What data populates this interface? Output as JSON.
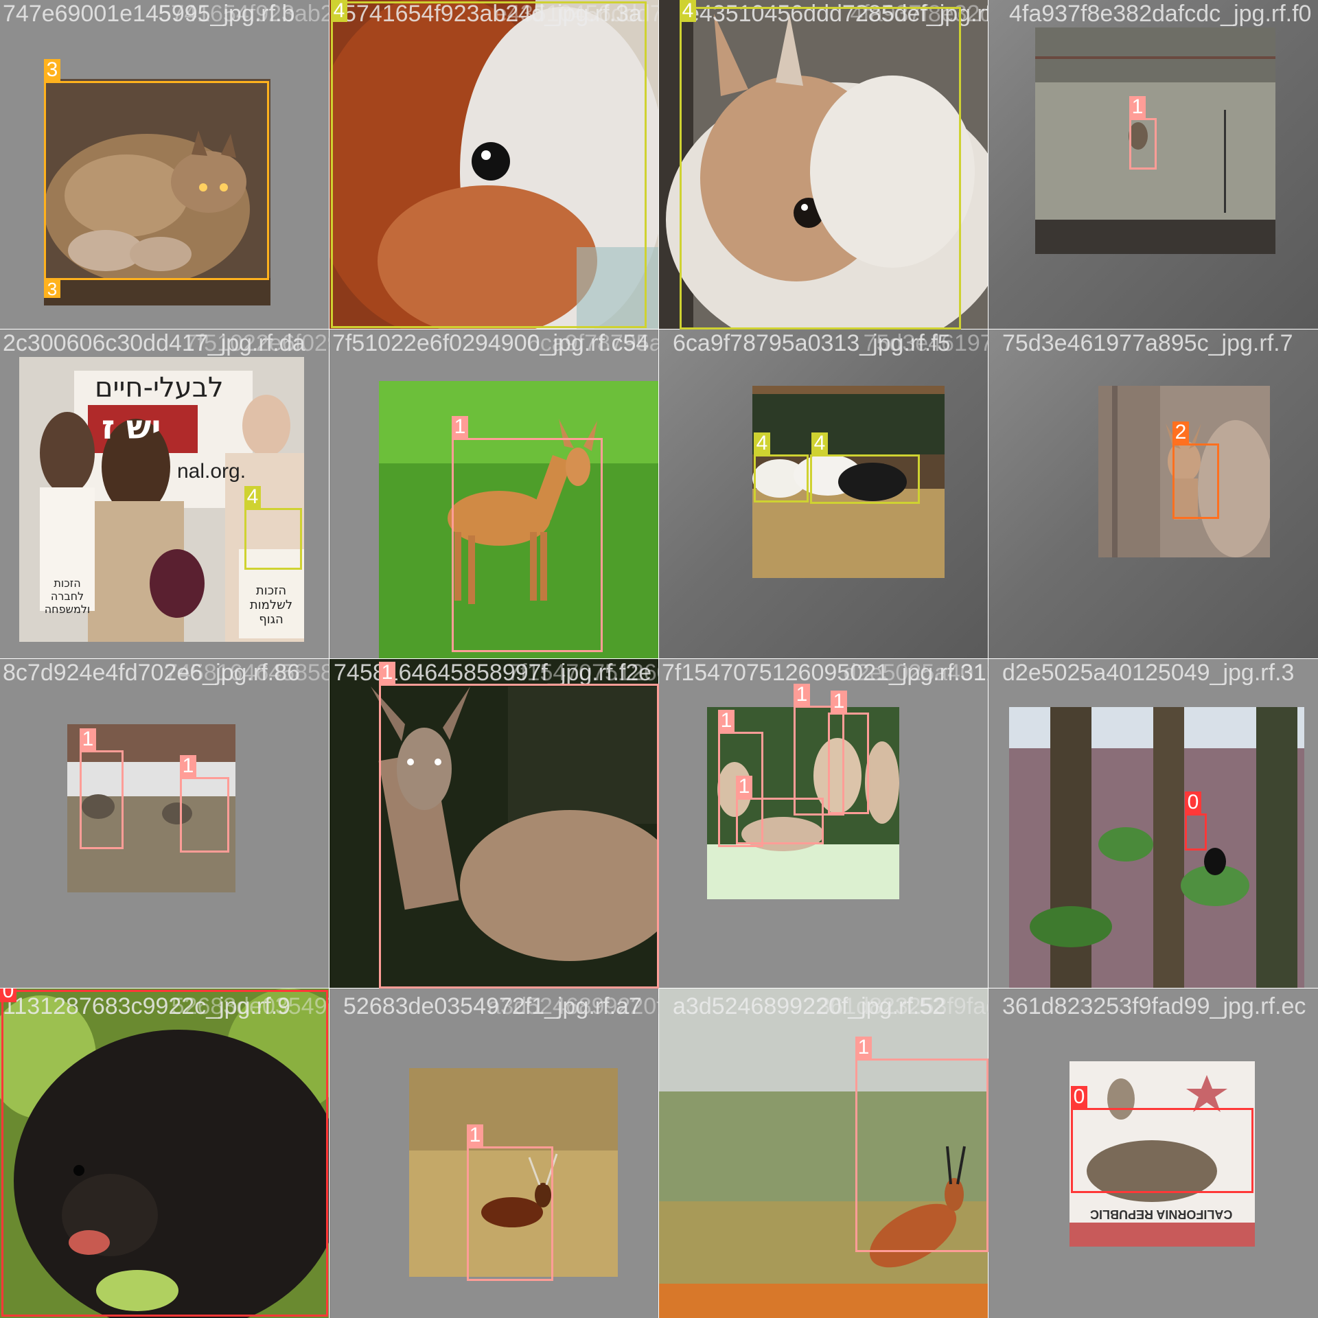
{
  "class_colors": {
    "0": "#ff3838",
    "1": "#ff9d97",
    "2": "#ff701f",
    "3": "#ffb21d",
    "4": "#cfd231"
  },
  "tiles": [
    {
      "filename": "747e69001e145995_jpg.rf.b",
      "overlap": "5741654f923ab24d_jpg.rf.3a",
      "labels": [
        "3"
      ],
      "scene": "lynx-icon"
    },
    {
      "filename": "5741654f923ab24d_jpg.rf.3a",
      "overlap": "e43510456ddd7285",
      "labels": [
        "4"
      ],
      "scene": "guinea-pig-icon"
    },
    {
      "filename": "e43510456ddd7285def_jpg.rf.fc",
      "overlap": "4fa937f8e32d0fcdc",
      "labels": [
        "4"
      ],
      "scene": "rabbit-icon"
    },
    {
      "filename": "4fa937f8e382dafcdc_jpg.rf.f0",
      "overlap": "",
      "labels": [
        "1"
      ],
      "scene": "field-deer-icon"
    },
    {
      "filename": "2c300606c30dd417_jpg.rf.da",
      "overlap": "7f51022e6f0294900_jpg.rf.c5",
      "labels": [
        "4"
      ],
      "scene": "protest-icon"
    },
    {
      "filename": "7f51022e6f0294900_jpg.rf.c54",
      "overlap": "6ca9f78795a0313",
      "labels": [
        "1"
      ],
      "scene": "fawn-icon"
    },
    {
      "filename": "6ca9f78795a0313_jpg.rf.f5",
      "overlap": "75d3e461977a895c",
      "labels": [
        "4",
        "4"
      ],
      "scene": "rabbits-hay-icon"
    },
    {
      "filename": "75d3e461977a895c_jpg.rf.7",
      "overlap": "",
      "labels": [
        "2"
      ],
      "scene": "fox-icon"
    },
    {
      "filename": "8c7d924e4fd702e6_jpg.rf.86",
      "overlap": "7458164645858997f_jpg.rf.f2",
      "labels": [
        "1",
        "1"
      ],
      "scene": "mule-deer-icon"
    },
    {
      "filename": "7458164645858997f_jpg.rf.f2e",
      "overlap": "7f1547075126095021",
      "labels": [
        "1"
      ],
      "scene": "doe-night-icon"
    },
    {
      "filename": "7f1547075126095021_jpg.rf.31",
      "overlap": "d2e5025a40125049",
      "labels": [
        "1",
        "1",
        "1",
        "1"
      ],
      "scene": "deer-herd-icon"
    },
    {
      "filename": "d2e5025a40125049_jpg.rf.3",
      "overlap": "",
      "labels": [
        "0"
      ],
      "scene": "forest-bear-icon"
    },
    {
      "filename": "1131287683c9922c_jpg.rf.9",
      "overlap": "52683de0354972f1",
      "labels": [
        "0"
      ],
      "scene": "bear-closeup-icon"
    },
    {
      "filename": "52683de0354972f1_jpg.rf.a7",
      "overlap": "a3d5246899220f",
      "labels": [
        "1"
      ],
      "scene": "stag-grass-icon"
    },
    {
      "filename": "a3d5246899220f_jpg.rf.52",
      "overlap": "361d823253f9fad99",
      "labels": [
        "1"
      ],
      "scene": "impala-icon"
    },
    {
      "filename": "361d823253f9fad99_jpg.rf.ec",
      "overlap": "",
      "labels": [
        "0"
      ],
      "scene": "flag-bear-icon"
    }
  ],
  "flag_text": "CALIFORNIA REPUBLIC",
  "protest_texts": {
    "banner": "לבעלי-חיים",
    "banner_big": "יש ז",
    "url": "nal.org.",
    "sign_left": "הזכות לחברה ולמשפחה",
    "sign_right": "הזכות לשלמות הגוף"
  }
}
